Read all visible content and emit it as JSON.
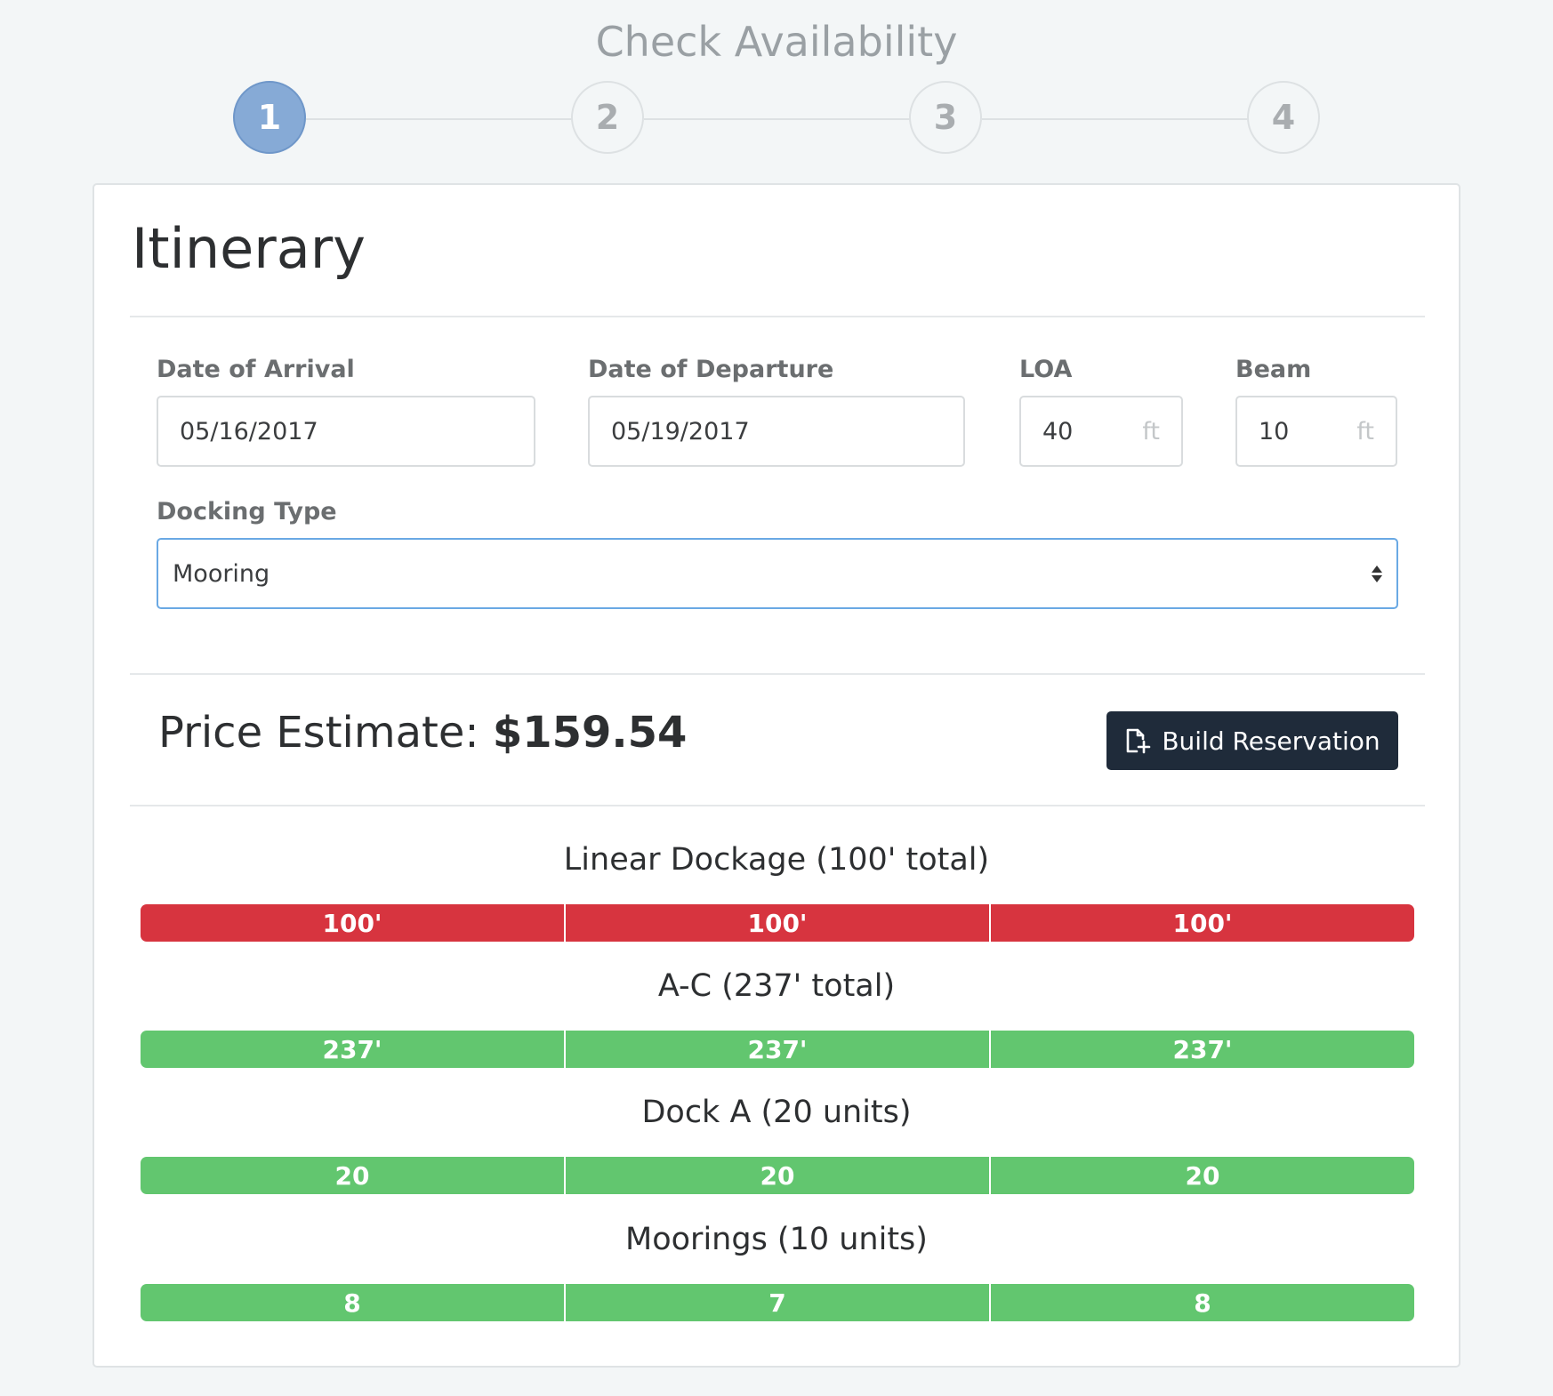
{
  "page": {
    "title": "Check Availability"
  },
  "stepper": {
    "steps": [
      "1",
      "2",
      "3",
      "4"
    ],
    "active_index": 0
  },
  "itinerary": {
    "title": "Itinerary",
    "arrival": {
      "label": "Date of Arrival",
      "value": "05/16/2017"
    },
    "departure": {
      "label": "Date of Departure",
      "value": "05/19/2017"
    },
    "loa": {
      "label": "LOA",
      "value": "40",
      "unit": "ft"
    },
    "beam": {
      "label": "Beam",
      "value": "10",
      "unit": "ft"
    },
    "docking_type": {
      "label": "Docking Type",
      "selected": "Mooring"
    }
  },
  "estimate": {
    "label": "Price Estimate:",
    "value": "$159.54",
    "build_button_label": "Build Reservation",
    "build_button_icon": "file-plus-icon"
  },
  "availability": [
    {
      "title": "Linear Dockage (100' total)",
      "status": "unavailable",
      "days": [
        "100'",
        "100'",
        "100'"
      ]
    },
    {
      "title": "A-C (237' total)",
      "status": "available",
      "days": [
        "237'",
        "237'",
        "237'"
      ]
    },
    {
      "title": "Dock A (20 units)",
      "status": "available",
      "days": [
        "20",
        "20",
        "20"
      ]
    },
    {
      "title": "Moorings (10 units)",
      "status": "available",
      "days": [
        "8",
        "7",
        "8"
      ]
    }
  ],
  "colors": {
    "active_step": "#86aad6",
    "unavailable": "#d7343f",
    "available": "#62c66f",
    "button": "#1f2b3a",
    "select_focus": "#6aa9e4"
  }
}
